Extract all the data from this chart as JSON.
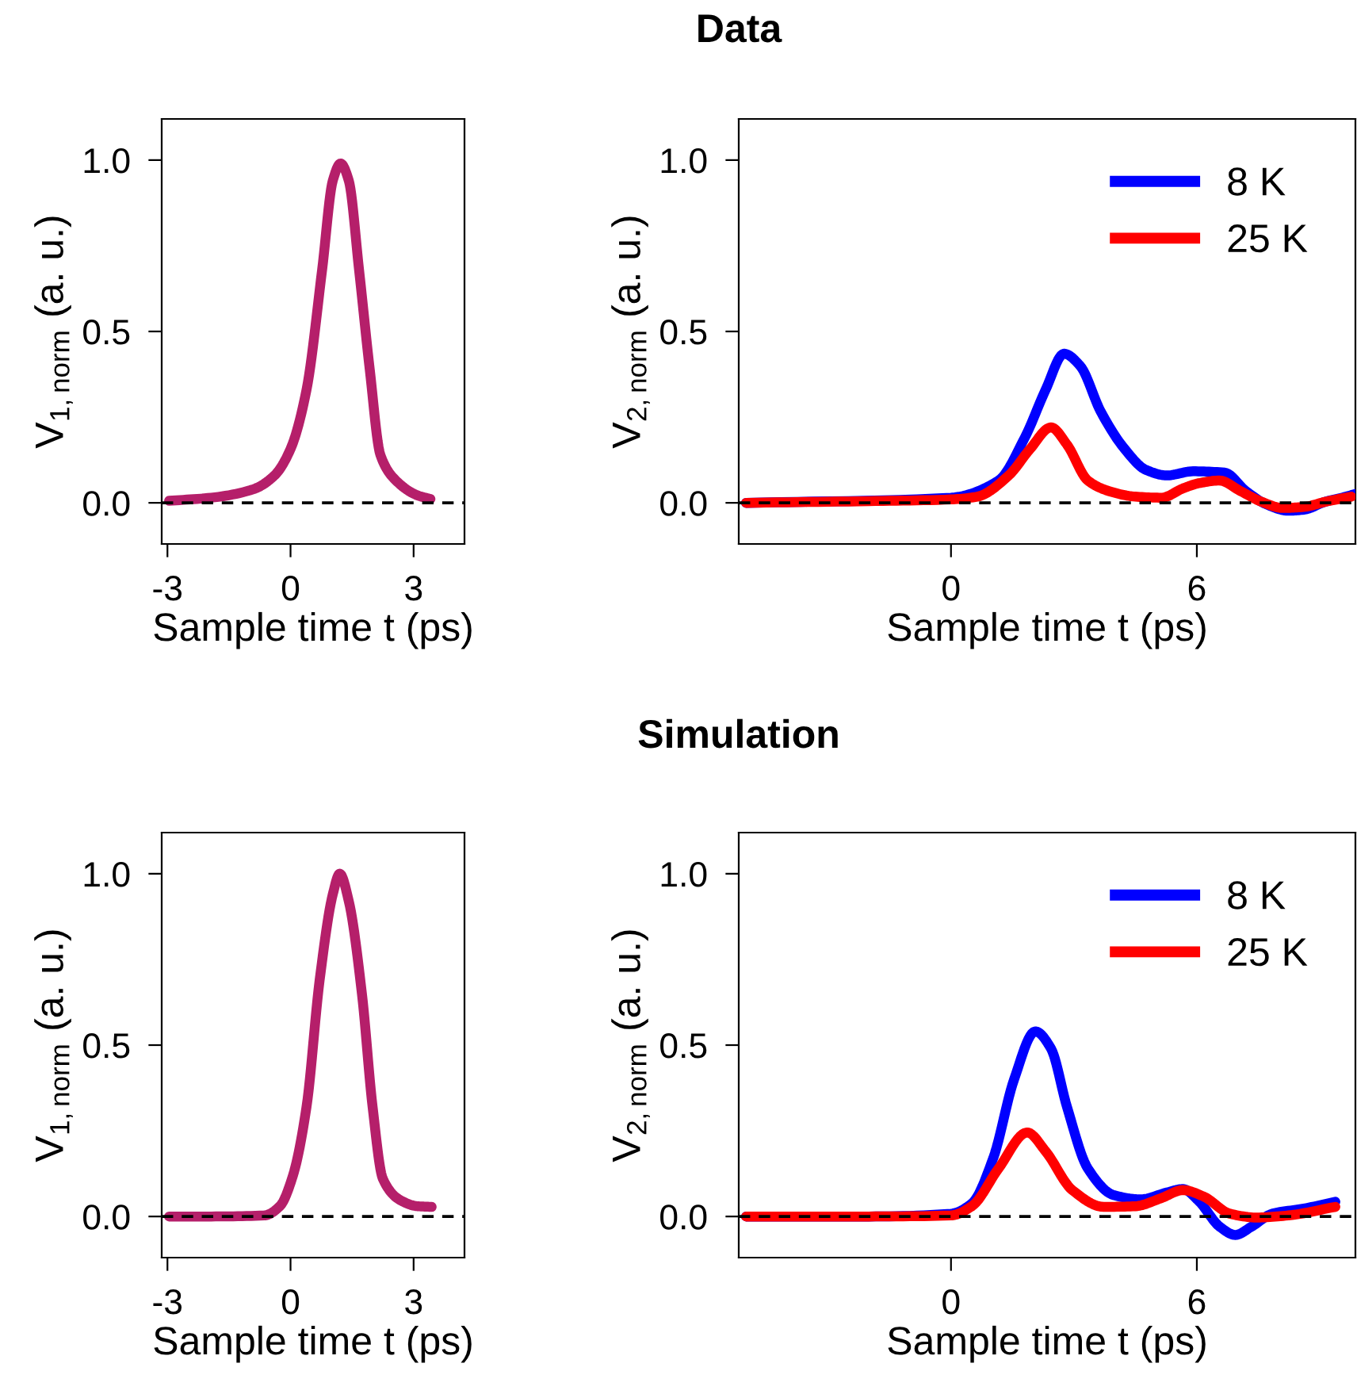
{
  "chart_data": [
    {
      "type": "line",
      "xlabel": "Sample time t (ps)",
      "ylabel": "V$_{1,norm}$ (a. u.)",
      "xlim": [
        -3.14,
        4.24
      ],
      "ylim": [
        -0.12,
        1.12
      ],
      "xticks": [
        {
          "value": -3,
          "label": "-3"
        },
        {
          "value": 0,
          "label": "0"
        },
        {
          "value": 3,
          "label": "3"
        }
      ],
      "yticks": [
        {
          "value": 0,
          "label": "0.0"
        },
        {
          "value": 0.5,
          "label": "0.5"
        },
        {
          "value": 1,
          "label": "1.0"
        }
      ],
      "grid": false,
      "legend": false,
      "ref_lines": [
        {
          "axis": "y",
          "value": 0,
          "color": "#000000",
          "line_style": "dashed"
        }
      ],
      "series": [
        {
          "color": "#b51f6a",
          "x": [
            -2.96,
            -1.93,
            -0.9,
            -0.39,
            0,
            0.39,
            0.77,
            1.03,
            1.22,
            1.42,
            1.67,
            1.93,
            2.19,
            2.57,
            3.09,
            3.41
          ],
          "values": [
            0.006,
            0.015,
            0.04,
            0.08,
            0.157,
            0.33,
            0.68,
            0.94,
            0.99,
            0.94,
            0.68,
            0.39,
            0.14,
            0.065,
            0.022,
            0.011
          ]
        }
      ]
    },
    {
      "type": "line",
      "title": "Data",
      "xlabel": "Sample time t (ps)",
      "ylabel": "V$_{2,norm}$ (a. u.)",
      "xlim": [
        -5.18,
        9.87
      ],
      "ylim": [
        -0.12,
        1.12
      ],
      "xticks": [
        {
          "value": 0,
          "label": "0"
        },
        {
          "value": 6,
          "label": "6"
        }
      ],
      "yticks": [
        {
          "value": 0,
          "label": "0.0"
        },
        {
          "value": 0.5,
          "label": "0.5"
        },
        {
          "value": 1,
          "label": "1.0"
        }
      ],
      "grid": false,
      "legend": "top right",
      "ref_lines": [
        {
          "axis": "y",
          "value": 0,
          "color": "#000000",
          "line_style": "dashed"
        }
      ],
      "series": [
        {
          "name": "8 K",
          "color": "#0000ff",
          "x": [
            -5,
            0,
            1.16,
            1.8,
            2.31,
            2.76,
            3.15,
            3.66,
            4.24,
            4.76,
            5.27,
            5.91,
            6.68,
            7.2,
            7.71,
            8.23,
            8.61,
            9.13,
            9.64,
            9.87
          ],
          "values": [
            0,
            0.015,
            0.065,
            0.19,
            0.33,
            0.435,
            0.4,
            0.265,
            0.157,
            0.096,
            0.08,
            0.092,
            0.088,
            0.034,
            -0.005,
            -0.023,
            -0.02,
            0.003,
            0.018,
            0.026
          ]
        },
        {
          "name": "25 K",
          "color": "#ff0000",
          "x": [
            -5,
            -2,
            0,
            0.64,
            1.41,
            1.93,
            2.44,
            2.83,
            3.34,
            3.86,
            4.5,
            5.14,
            5.66,
            6.04,
            6.55,
            7.07,
            7.58,
            8.1,
            8.61,
            9.13,
            9.77
          ],
          "values": [
            0,
            0.005,
            0.01,
            0.018,
            0.08,
            0.157,
            0.22,
            0.17,
            0.065,
            0.034,
            0.018,
            0.015,
            0.042,
            0.057,
            0.065,
            0.034,
            0.003,
            -0.015,
            -0.012,
            0.003,
            0.018
          ]
        }
      ]
    },
    {
      "type": "line",
      "xlabel": "Sample time t (ps)",
      "ylabel": "V$_{1,norm}$ (a. u.)",
      "xlim": [
        -3.14,
        4.24
      ],
      "ylim": [
        -0.12,
        1.12
      ],
      "xticks": [
        {
          "value": -3,
          "label": "-3"
        },
        {
          "value": 0,
          "label": "0"
        },
        {
          "value": 3,
          "label": "3"
        }
      ],
      "yticks": [
        {
          "value": 0,
          "label": "0.0"
        },
        {
          "value": 0.5,
          "label": "0.5"
        },
        {
          "value": 1,
          "label": "1.0"
        }
      ],
      "grid": false,
      "legend": false,
      "ref_lines": [
        {
          "axis": "y",
          "value": 0,
          "color": "#000000",
          "line_style": "dashed"
        }
      ],
      "series": [
        {
          "color": "#b51f6a",
          "x": [
            -2.96,
            -1.93,
            -0.64,
            -0.26,
            0.06,
            0.39,
            0.71,
            1.03,
            1.2,
            1.42,
            1.74,
            2.0,
            2.25,
            2.7,
            3.09,
            3.44
          ],
          "values": [
            0,
            0,
            0.003,
            0.03,
            0.12,
            0.32,
            0.69,
            0.94,
            1.0,
            0.92,
            0.65,
            0.32,
            0.11,
            0.046,
            0.03,
            0.028
          ]
        }
      ]
    },
    {
      "type": "line",
      "title": "Simulation",
      "xlabel": "Sample time t (ps)",
      "ylabel": "V$_{2,norm}$ (a. u.)",
      "xlim": [
        -5.18,
        9.87
      ],
      "ylim": [
        -0.12,
        1.12
      ],
      "xticks": [
        {
          "value": 0,
          "label": "0"
        },
        {
          "value": 6,
          "label": "6"
        }
      ],
      "yticks": [
        {
          "value": 0,
          "label": "0.0"
        },
        {
          "value": 0.5,
          "label": "0.5"
        },
        {
          "value": 1,
          "label": "1.0"
        }
      ],
      "grid": false,
      "legend": "top right",
      "ref_lines": [
        {
          "axis": "y",
          "value": 0,
          "color": "#000000",
          "line_style": "dashed"
        }
      ],
      "series": [
        {
          "name": "8 K",
          "color": "#0000ff",
          "x": [
            -5,
            -2,
            0,
            0.51,
            1.03,
            1.54,
            2.06,
            2.44,
            2.83,
            3.34,
            3.98,
            4.63,
            5.27,
            5.66,
            6.04,
            6.56,
            6.94,
            7.33,
            7.84,
            8.61,
            9.38
          ],
          "values": [
            0,
            0,
            0.008,
            0.038,
            0.17,
            0.4,
            0.54,
            0.49,
            0.32,
            0.14,
            0.062,
            0.05,
            0.07,
            0.08,
            0.046,
            -0.03,
            -0.054,
            -0.03,
            0.008,
            0.023,
            0.043
          ]
        },
        {
          "name": "25 K",
          "color": "#ff0000",
          "x": [
            -5,
            -2,
            0,
            0.51,
            1.16,
            1.86,
            2.31,
            2.96,
            3.73,
            4.5,
            5.14,
            5.66,
            6.17,
            6.81,
            7.46,
            8.23,
            9.38
          ],
          "values": [
            0,
            0,
            0.003,
            0.03,
            0.14,
            0.245,
            0.19,
            0.077,
            0.028,
            0.03,
            0.054,
            0.077,
            0.058,
            0.008,
            -0.003,
            0.003,
            0.028
          ]
        }
      ]
    }
  ]
}
